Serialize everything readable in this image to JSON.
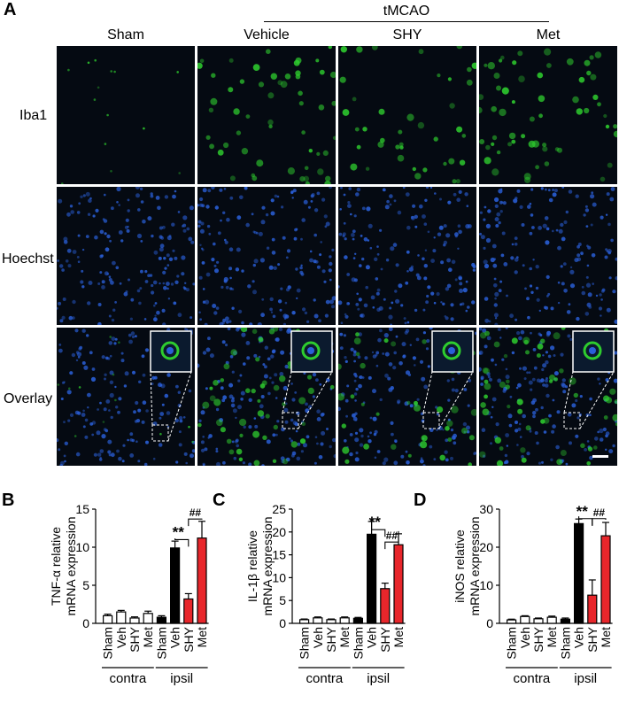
{
  "panel_a": {
    "letter": "A",
    "group_label": "tMCAO",
    "columns": [
      "Sham",
      "Vehicle",
      "SHY",
      "Met"
    ],
    "rows": [
      "Iba1",
      "Hoechst",
      "Overlay"
    ],
    "colors": {
      "iba1": "#2ecc2e",
      "hoechst": "#2a5fd8",
      "background": "#050a12"
    }
  },
  "chart_data": [
    {
      "panel": "B",
      "type": "bar",
      "ylabel_parts": [
        "TNF-α relative",
        "mRNA expression"
      ],
      "ylim": [
        0,
        15
      ],
      "yticks": [
        "0",
        "5",
        "10",
        "15"
      ],
      "categories": [
        "Sham",
        "Veh",
        "SHY",
        "Met",
        "Sham",
        "Veh",
        "SHY",
        "Met"
      ],
      "values": [
        1.0,
        1.5,
        0.7,
        1.3,
        0.8,
        9.9,
        3.2,
        11.2
      ],
      "errors": [
        0.2,
        0.2,
        0.15,
        0.3,
        0.2,
        0.9,
        0.7,
        2.2
      ],
      "groups": [
        {
          "name": "contra",
          "span": [
            0,
            3
          ]
        },
        {
          "name": "ipsil",
          "span": [
            4,
            7
          ]
        }
      ],
      "colors": [
        "#ffffff",
        "#ffffff",
        "#ffffff",
        "#ffffff",
        "#000000",
        "#000000",
        "#e8262b",
        "#e8262b"
      ],
      "annotations": [
        {
          "text": "**",
          "from": 5,
          "to": 6,
          "level": 11.0
        },
        {
          "text": "##",
          "from": 6,
          "to": 7,
          "level": 13.7
        }
      ]
    },
    {
      "panel": "C",
      "type": "bar",
      "ylabel_parts": [
        "IL-1β relative",
        "mRNA expression"
      ],
      "ylim": [
        0,
        25
      ],
      "yticks": [
        "0",
        "5",
        "10",
        "15",
        "20",
        "25"
      ],
      "categories": [
        "Sham",
        "Veh",
        "SHY",
        "Met",
        "Sham",
        "Veh",
        "SHY",
        "Met"
      ],
      "values": [
        0.8,
        1.2,
        0.8,
        1.2,
        1.1,
        19.5,
        7.6,
        17.2
      ],
      "errors": [
        0.15,
        0.2,
        0.15,
        0.2,
        0.2,
        2.8,
        1.2,
        2.4
      ],
      "groups": [
        {
          "name": "contra",
          "span": [
            0,
            3
          ]
        },
        {
          "name": "ipsil",
          "span": [
            4,
            7
          ]
        }
      ],
      "colors": [
        "#ffffff",
        "#ffffff",
        "#ffffff",
        "#ffffff",
        "#000000",
        "#000000",
        "#e8262b",
        "#e8262b"
      ],
      "annotations": [
        {
          "text": "**",
          "from": 5,
          "to": 6,
          "level": 20.5
        },
        {
          "text": "##",
          "from": 6,
          "to": 7,
          "level": 17.8
        }
      ]
    },
    {
      "panel": "D",
      "type": "bar",
      "ylabel_parts": [
        "iNOS relative",
        "mRNA expression"
      ],
      "ylim": [
        0,
        30
      ],
      "yticks": [
        "0",
        "10",
        "20",
        "30"
      ],
      "categories": [
        "Sham",
        "Veh",
        "SHY",
        "Met",
        "Sham",
        "Veh",
        "SHY",
        "Met"
      ],
      "values": [
        0.9,
        1.8,
        1.2,
        1.6,
        1.1,
        26.2,
        7.4,
        23.0
      ],
      "errors": [
        0.2,
        0.2,
        0.2,
        0.3,
        0.3,
        1.2,
        4.0,
        3.5
      ],
      "groups": [
        {
          "name": "contra",
          "span": [
            0,
            3
          ]
        },
        {
          "name": "ipsil",
          "span": [
            4,
            7
          ]
        }
      ],
      "colors": [
        "#ffffff",
        "#ffffff",
        "#ffffff",
        "#ffffff",
        "#000000",
        "#000000",
        "#e8262b",
        "#e8262b"
      ],
      "annotations": [
        {
          "text": "**",
          "from": 5,
          "to": 6,
          "level": 27.5
        },
        {
          "text": "##",
          "from": 6,
          "to": 7,
          "level": 27.5
        }
      ]
    }
  ]
}
